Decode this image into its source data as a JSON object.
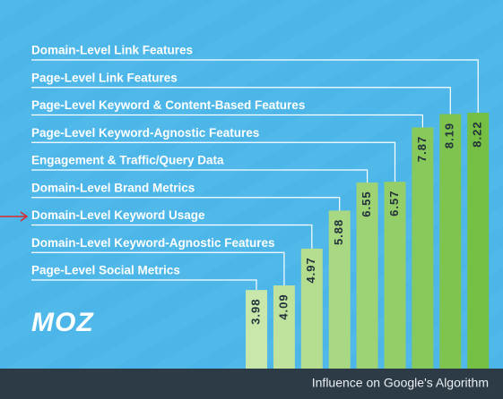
{
  "chart_data": {
    "type": "bar",
    "orientation": "vertical",
    "logo": "MOZ",
    "x_label": "Influence on Google's Algorithm",
    "categories": [
      "Page-Level Social Metrics",
      "Domain-Level Keyword-Agnostic Features",
      "Domain-Level Keyword Usage",
      "Domain-Level Brand Metrics",
      "Engagement & Traffic/Query Data",
      "Page-Level Keyword-Agnostic Features",
      "Page-Level Keyword & Content-Based Features",
      "Page-Level Link Features",
      "Domain-Level Link Features"
    ],
    "values": [
      3.98,
      4.09,
      4.97,
      5.88,
      6.55,
      6.57,
      7.87,
      8.19,
      8.22
    ],
    "colors": [
      "#c9e7ab",
      "#bfe29d",
      "#b4dd8f",
      "#a9d882",
      "#9ed375",
      "#93ce68",
      "#88c95b",
      "#7ec44f",
      "#74bf44"
    ],
    "ylim": [
      2.1,
      8.5
    ]
  }
}
